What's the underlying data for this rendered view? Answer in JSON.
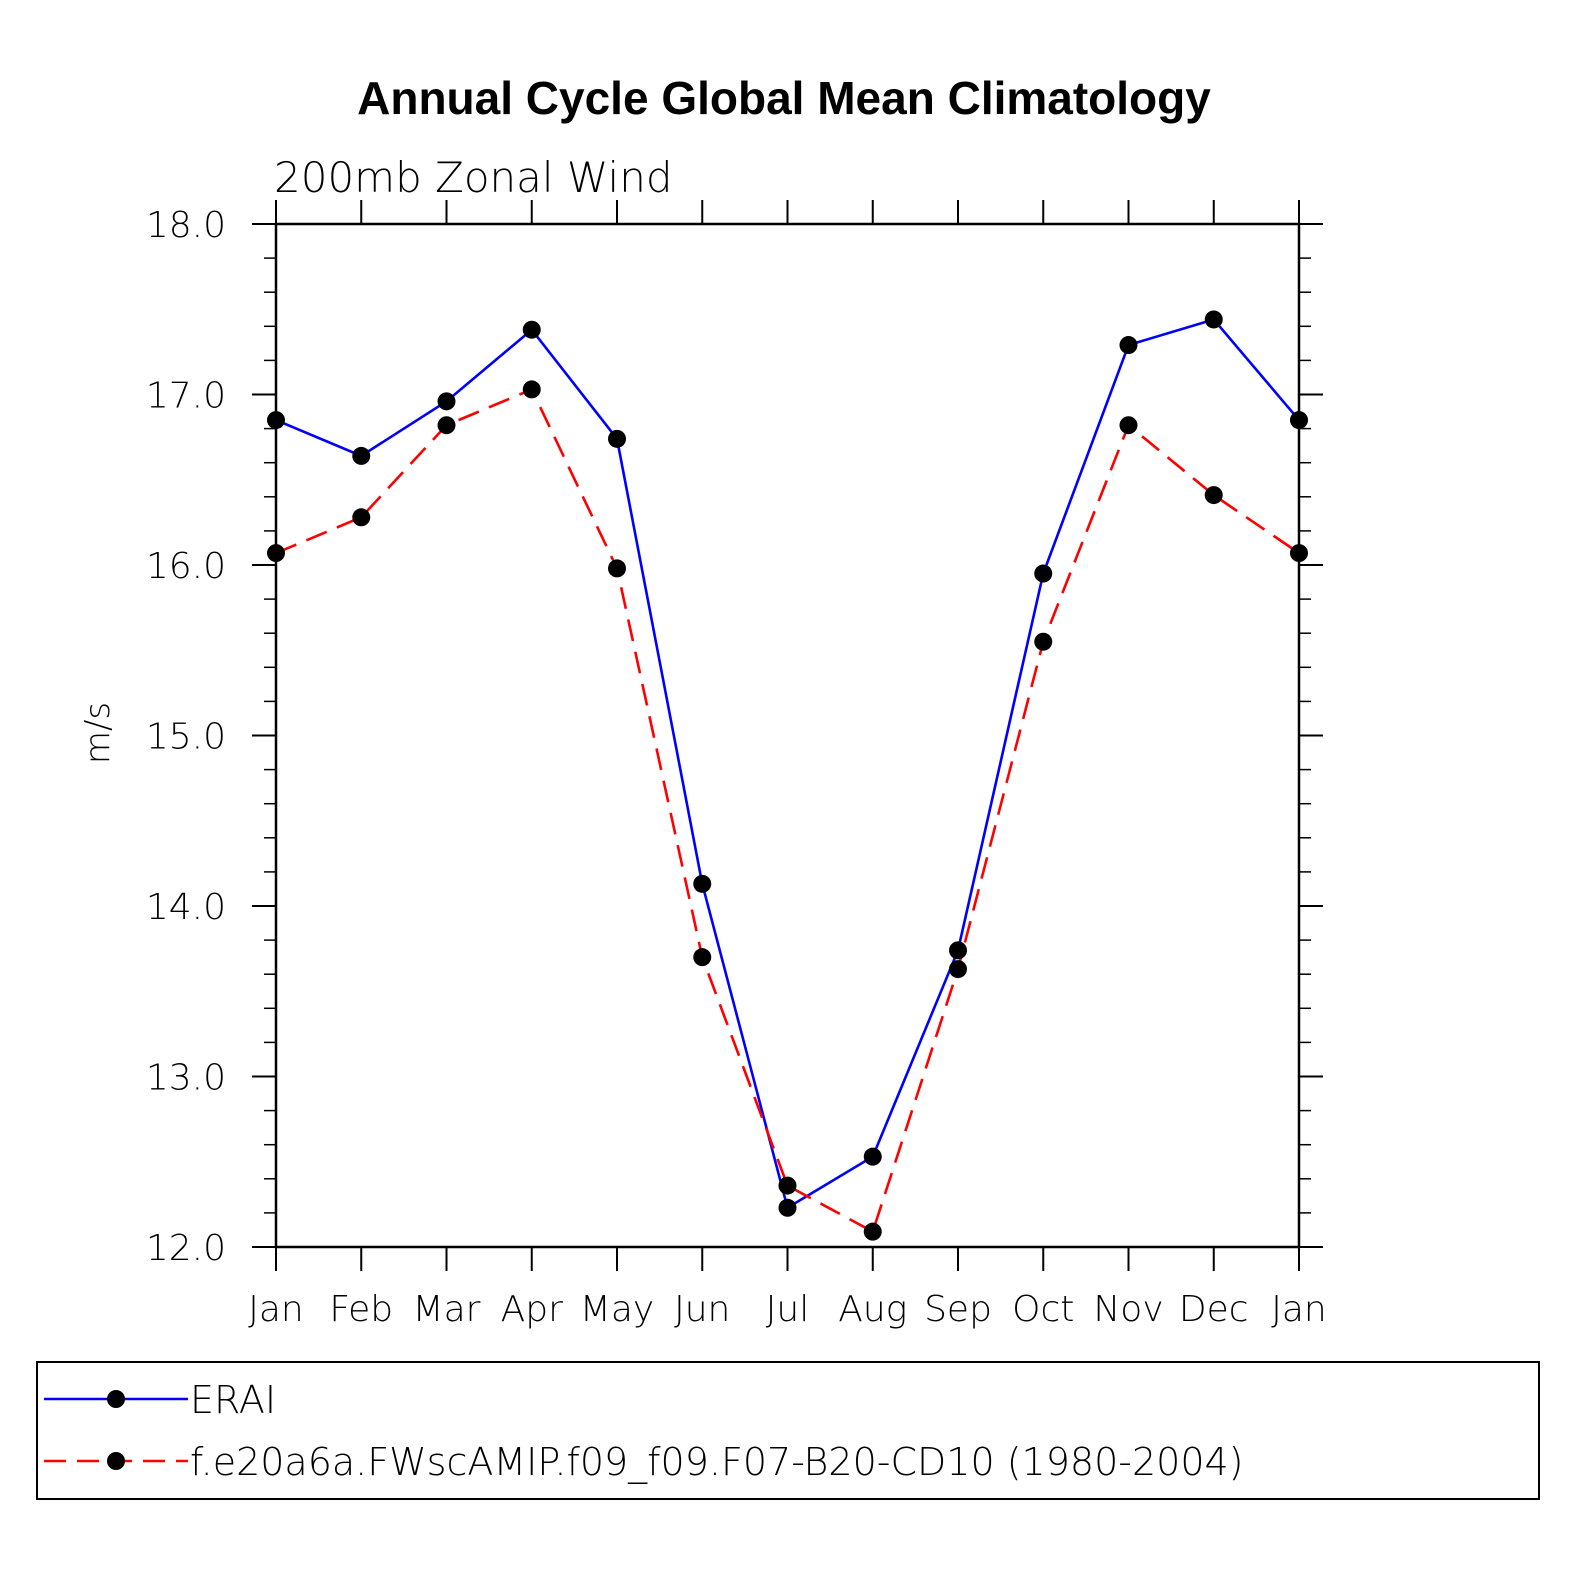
{
  "chart_data": {
    "type": "line",
    "title": "Annual Cycle Global Mean Climatology",
    "subtitle": "200mb Zonal Wind",
    "xlabel": "",
    "ylabel": "m/s",
    "categories": [
      "Jan",
      "Feb",
      "Mar",
      "Apr",
      "May",
      "Jun",
      "Jul",
      "Aug",
      "Sep",
      "Oct",
      "Nov",
      "Dec",
      "Jan"
    ],
    "ylim": [
      12.0,
      18.0
    ],
    "yticks": [
      "12.0",
      "13.0",
      "14.0",
      "15.0",
      "16.0",
      "17.0",
      "18.0"
    ],
    "series": [
      {
        "name": "ERAI",
        "color": "#0000ff",
        "dash": "solid",
        "values": [
          16.85,
          16.64,
          16.96,
          17.38,
          16.74,
          14.13,
          12.23,
          12.53,
          13.74,
          15.95,
          17.29,
          17.44,
          16.85
        ]
      },
      {
        "name": "f.e20a6a.FWscAMIP.f09_f09.F07-B20-CD10 (1980-2004)",
        "color": "#ff0000",
        "dash": "dashed",
        "values": [
          16.07,
          16.28,
          16.82,
          17.03,
          15.98,
          13.7,
          12.36,
          12.09,
          13.63,
          15.55,
          16.82,
          16.41,
          16.07
        ]
      }
    ],
    "marker_color": "#000000",
    "legend_position": "bottom"
  }
}
